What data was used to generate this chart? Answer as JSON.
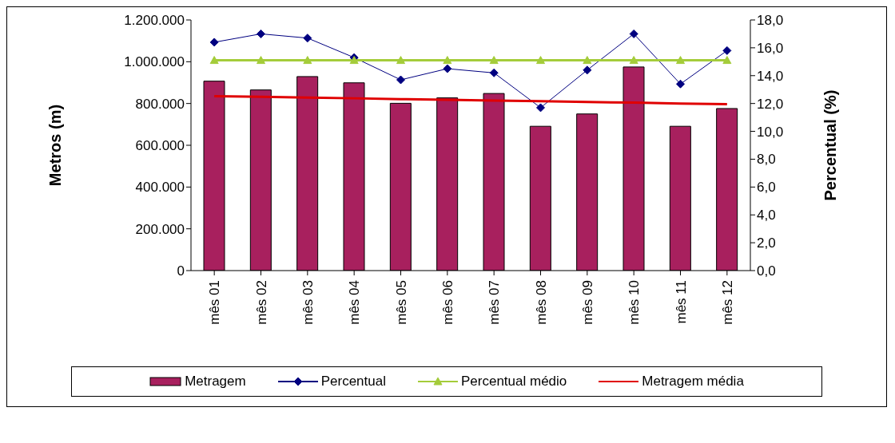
{
  "chart_data": {
    "type": "bar",
    "xlabel": null,
    "ylabel": "Metros (m)",
    "y2label": "Percentual (%)",
    "categories": [
      "mês 01",
      "mês 02",
      "mês 03",
      "mês 04",
      "mês 05",
      "mês 06",
      "mês 07",
      "mês 08",
      "mês 09",
      "mês 10",
      "mês 11",
      "mês 12"
    ],
    "series": [
      {
        "name": "Metragem",
        "color": "#a8205e",
        "values": [
          907000,
          865000,
          929000,
          899000,
          801000,
          827000,
          848000,
          691000,
          750000,
          975000,
          691000,
          776000
        ]
      },
      {
        "name": "Percentual",
        "type": "line",
        "axis": "y2",
        "color": "#000080",
        "marker": "diamond",
        "values": [
          16.4,
          17.0,
          16.7,
          15.3,
          13.7,
          14.5,
          14.2,
          11.7,
          14.4,
          17.0,
          13.4,
          15.8
        ]
      },
      {
        "name": "Percentual médio",
        "type": "line",
        "axis": "y2",
        "color": "#a4cc3a",
        "marker": "triangle",
        "values": [
          15.1,
          15.1,
          15.1,
          15.1,
          15.1,
          15.1,
          15.1,
          15.1,
          15.1,
          15.1,
          15.1,
          15.1
        ]
      },
      {
        "name": "Metragem média",
        "type": "line",
        "color": "#e00000",
        "marker": "none",
        "values": [
          835000,
          832000,
          828000,
          825000,
          821000,
          818000,
          814000,
          811000,
          807000,
          804000,
          800000,
          797000
        ]
      }
    ],
    "ylim": [
      0,
      1200000
    ],
    "yticks": [
      0,
      {
        "value": 200000,
        "label": "200.000"
      },
      {
        "value": 400000,
        "label": "400.000"
      },
      {
        "value": 600000,
        "label": "600.000"
      },
      {
        "value": 800000,
        "label": "800.000"
      },
      {
        "value": 1000000,
        "label": "1.000.000"
      },
      {
        "value": 1200000,
        "label": "1.200.000"
      }
    ],
    "y2lim": [
      0,
      18
    ],
    "y2ticks": [
      {
        "value": 0,
        "label": "0,0"
      },
      {
        "value": 2,
        "label": "2,0"
      },
      {
        "value": 4,
        "label": "4,0"
      },
      {
        "value": 6,
        "label": "6,0"
      },
      {
        "value": 8,
        "label": "8,0"
      },
      {
        "value": 10,
        "label": "10,0"
      },
      {
        "value": 12,
        "label": "12,0"
      },
      {
        "value": 14,
        "label": "14,0"
      },
      {
        "value": 16,
        "label": "16,0"
      },
      {
        "value": 18,
        "label": "18,0"
      }
    ],
    "grid": false,
    "legend": "bottom"
  }
}
